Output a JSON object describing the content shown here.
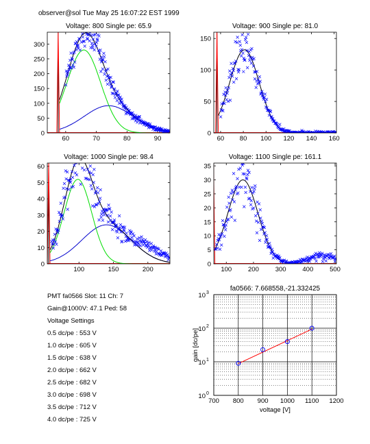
{
  "header": "observer@sol  Tue May 25 16:07:22 EST 1999",
  "info": {
    "pmt_line": "PMT fa0566 Slot: 11 Ch: 7",
    "gain_line": "Gain@1000V: 47.1 Ped: 58",
    "settings_title": "Voltage Settings",
    "settings": [
      "0.5 dc/pe : 553 V",
      "1.0 dc/pe : 605 V",
      "1.5 dc/pe : 638 V",
      "2.0 dc/pe : 662 V",
      "2.5 dc/pe : 682 V",
      "3.0 dc/pe : 698 V",
      "3.5 dc/pe : 712 V",
      "4.0 dc/pe : 725 V"
    ]
  },
  "colors": {
    "data": "#0000ff",
    "total_fit": "#000000",
    "single_pe": "#00dd00",
    "two_pe": "#0000cc",
    "pedestal": "#ff0000",
    "gain_line": "#ff0000"
  },
  "chart_data": [
    {
      "type": "scatter",
      "title": "Voltage: 800 Single pe: 65.9",
      "xlim": [
        54,
        94
      ],
      "ylim": [
        0,
        340
      ],
      "xticks": [
        60,
        70,
        80,
        90
      ],
      "yticks": [
        0,
        50,
        100,
        150,
        200,
        250,
        300
      ],
      "pedestal": 58,
      "single_pe": {
        "mean": 65.9,
        "amp": 280,
        "sigma": 5.5
      },
      "two_pe": {
        "mean": 74,
        "amp": 92,
        "sigma": 8
      },
      "noise": 0.09
    },
    {
      "type": "scatter",
      "title": "Voltage: 900 Single pe: 81.0",
      "xlim": [
        54,
        162
      ],
      "ylim": [
        0,
        160
      ],
      "xticks": [
        60,
        80,
        100,
        120,
        140,
        160
      ],
      "yticks": [
        0,
        50,
        100,
        150
      ],
      "pedestal": 58,
      "single_pe": {
        "mean": 81.0,
        "amp": 132,
        "sigma": 13
      },
      "two_pe": {
        "mean": 105,
        "amp": 0,
        "sigma": 20
      },
      "noise": 0.12
    },
    {
      "type": "scatter",
      "title": "Voltage: 1000 Single pe: 98.4",
      "xlim": [
        54,
        232
      ],
      "ylim": [
        0,
        62
      ],
      "xticks": [
        100,
        150,
        200
      ],
      "yticks": [
        0,
        10,
        20,
        30,
        40,
        50,
        60
      ],
      "pedestal": 58,
      "single_pe": {
        "mean": 98.4,
        "amp": 52,
        "sigma": 20
      },
      "two_pe": {
        "mean": 140,
        "amp": 24,
        "sigma": 36
      },
      "noise": 0.15
    },
    {
      "type": "scatter",
      "title": "Voltage: 1100 Single pe: 161.1",
      "xlim": [
        54,
        505
      ],
      "ylim": [
        0,
        36
      ],
      "xticks": [
        100,
        200,
        300,
        400,
        500
      ],
      "yticks": [
        0,
        5,
        10,
        15,
        20,
        25,
        30,
        35
      ],
      "pedestal": 58,
      "single_pe": {
        "mean": 161.1,
        "amp": 30,
        "sigma": 55
      },
      "two_pe": {
        "mean": 320,
        "amp": 0,
        "sigma": 60
      },
      "noise": 0.18
    },
    {
      "type": "line",
      "title": "fa0566: 7.668558,-21.332425",
      "xlabel": "voltage [V]",
      "ylabel": "gain [dc/pe]",
      "xlim": [
        700,
        1200
      ],
      "ylim": [
        1,
        1000
      ],
      "yscale": "log",
      "xticks": [
        700,
        800,
        900,
        1000,
        1100,
        1200
      ],
      "yticks": [
        {
          "base": "10",
          "exp": "0"
        },
        {
          "base": "10",
          "exp": "1"
        },
        {
          "base": "10",
          "exp": "2"
        },
        {
          "base": "10",
          "exp": "3"
        }
      ],
      "grid": true,
      "points": {
        "x": [
          800,
          900,
          1000,
          1100
        ],
        "y": [
          9,
          23,
          40,
          100
        ]
      },
      "fit": {
        "x": [
          800,
          1100
        ],
        "y": [
          8.8,
          94
        ]
      }
    }
  ]
}
